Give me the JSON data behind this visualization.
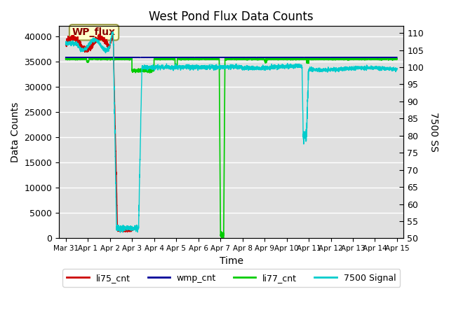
{
  "title": "West Pond Flux Data Counts",
  "xlabel": "Time",
  "ylabel_left": "Data Counts",
  "ylabel_right": "7500 SS",
  "ylim_left": [
    0,
    42000
  ],
  "ylim_right": [
    50,
    112
  ],
  "yticks_left": [
    0,
    5000,
    10000,
    15000,
    20000,
    25000,
    30000,
    35000,
    40000
  ],
  "yticks_right": [
    50,
    55,
    60,
    65,
    70,
    75,
    80,
    85,
    90,
    95,
    100,
    105,
    110
  ],
  "xtick_labels": [
    "Mar 31",
    "Apr 1",
    "Apr 2",
    "Apr 3",
    "Apr 4",
    "Apr 5",
    "Apr 6",
    "Apr 7",
    "Apr 8",
    "Apr 9",
    "Apr 10",
    "Apr 11",
    "Apr 12",
    "Apr 13",
    "Apr 14",
    "Apr 15"
  ],
  "bg_color": "#e0e0e0",
  "line_colors": [
    "#cc0000",
    "#000099",
    "#00cc00",
    "#00cccc"
  ],
  "annotation_text": "WP_flux",
  "legend_labels": [
    "li75_cnt",
    "wmp_cnt",
    "li77_cnt",
    "7500 Signal"
  ]
}
